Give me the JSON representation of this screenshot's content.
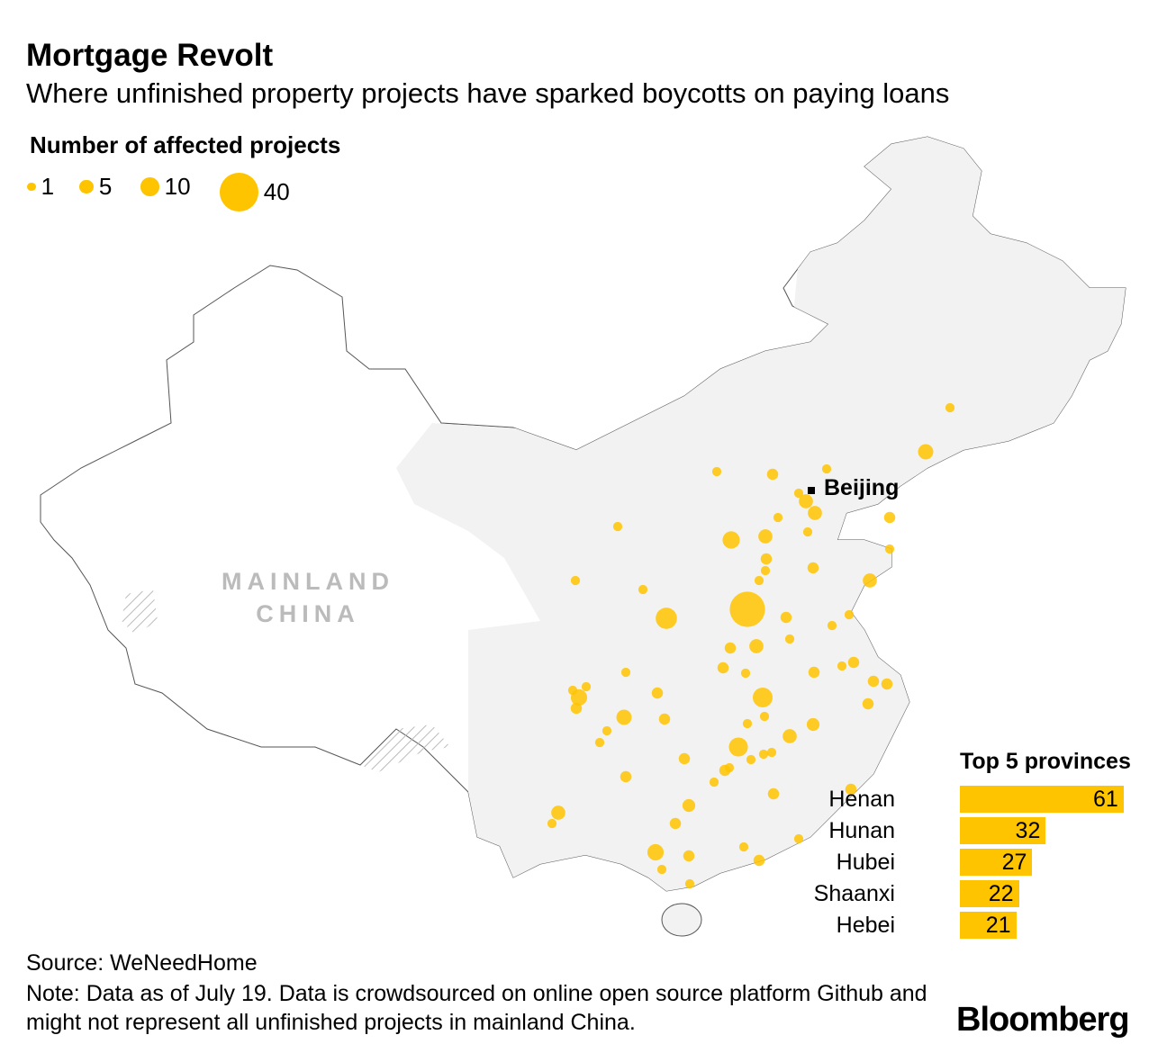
{
  "title": "Mortgage Revolt",
  "subtitle": "Where unfinished property projects have sparked boycotts on paying loans",
  "legend": {
    "title": "Number of affected projects",
    "items": [
      {
        "label": "1",
        "value": 1
      },
      {
        "label": "5",
        "value": 5
      },
      {
        "label": "10",
        "value": 10
      },
      {
        "label": "40",
        "value": 40
      }
    ]
  },
  "map": {
    "city_label": "Beijing",
    "region_label_1": "MAINLAND",
    "region_label_2": "CHINA",
    "bubble_color": "#ffc400",
    "land_color": "#f2f2f2"
  },
  "chart_data": {
    "type": "bar",
    "title": "Top 5 provinces",
    "categories": [
      "Henan",
      "Hunan",
      "Hubei",
      "Shaanxi",
      "Hebei"
    ],
    "values": [
      61,
      32,
      27,
      22,
      21
    ],
    "orientation": "horizontal",
    "color": "#ffc400"
  },
  "source": "Source: WeNeedHome",
  "note": "Note: Data as of July 19. Data is crowdsourced on online open source platform Github and might not represent all unfinished projects in mainland China.",
  "logo": "Bloomberg"
}
